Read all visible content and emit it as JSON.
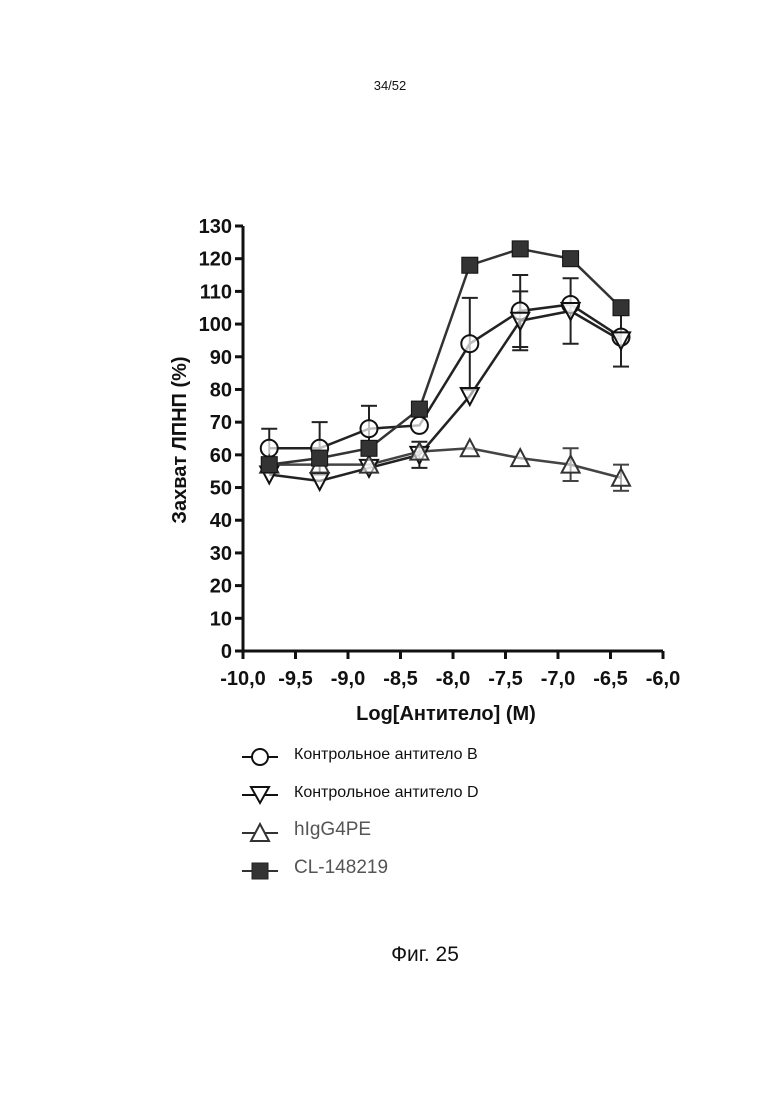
{
  "page_number": "34/52",
  "figure_caption": "Фиг. 25",
  "chart_data": {
    "type": "line",
    "title": "",
    "xlabel": "Log[Антитело] (M)",
    "ylabel": "Захват ЛПНП (%)",
    "xlim": [
      -10.0,
      -6.0
    ],
    "ylim": [
      0,
      130
    ],
    "x_ticks": [
      -10.0,
      -9.5,
      -9.0,
      -8.5,
      -8.0,
      -7.5,
      -7.0,
      -6.5,
      -6.0
    ],
    "x_tick_labels": [
      "-10,0",
      "-9,5",
      "-9,0",
      "-8,5",
      "-8,0",
      "-7,5",
      "-7,0",
      "-6,5",
      "-6,0"
    ],
    "y_ticks": [
      0,
      10,
      20,
      30,
      40,
      50,
      60,
      70,
      80,
      90,
      100,
      110,
      120,
      130
    ],
    "y_tick_labels": [
      "0",
      "10",
      "20",
      "30",
      "40",
      "50",
      "60",
      "70",
      "80",
      "90",
      "100",
      "110",
      "120",
      "130"
    ],
    "grid": false,
    "legend_position": "bottom",
    "x": [
      -9.75,
      -9.27,
      -8.8,
      -8.32,
      -7.84,
      -7.36,
      -6.88,
      -6.4
    ],
    "series": [
      {
        "name": "Контрольное антитело B",
        "marker": "circle-open",
        "values": [
          62,
          62,
          68,
          69,
          94,
          104,
          106,
          96
        ],
        "error": [
          6,
          8,
          7,
          0,
          14,
          11,
          0,
          0
        ]
      },
      {
        "name": "Контрольное антитело D",
        "marker": "triangle-down-open",
        "values": [
          54,
          52,
          56,
          60,
          78,
          101,
          104,
          95
        ],
        "error": [
          0,
          0,
          0,
          4,
          0,
          9,
          10,
          8
        ]
      },
      {
        "name": "hIgG4PE",
        "marker": "triangle-up-open",
        "values": [
          57,
          57,
          57,
          61,
          62,
          59,
          57,
          53
        ],
        "error": [
          0,
          0,
          0,
          0,
          0,
          0,
          5,
          4
        ]
      },
      {
        "name": "CL-148219",
        "marker": "square-filled",
        "values": [
          57,
          59,
          62,
          74,
          118,
          123,
          120,
          105
        ],
        "error": [
          0,
          0,
          0,
          0,
          0,
          0,
          0,
          0
        ]
      }
    ]
  }
}
